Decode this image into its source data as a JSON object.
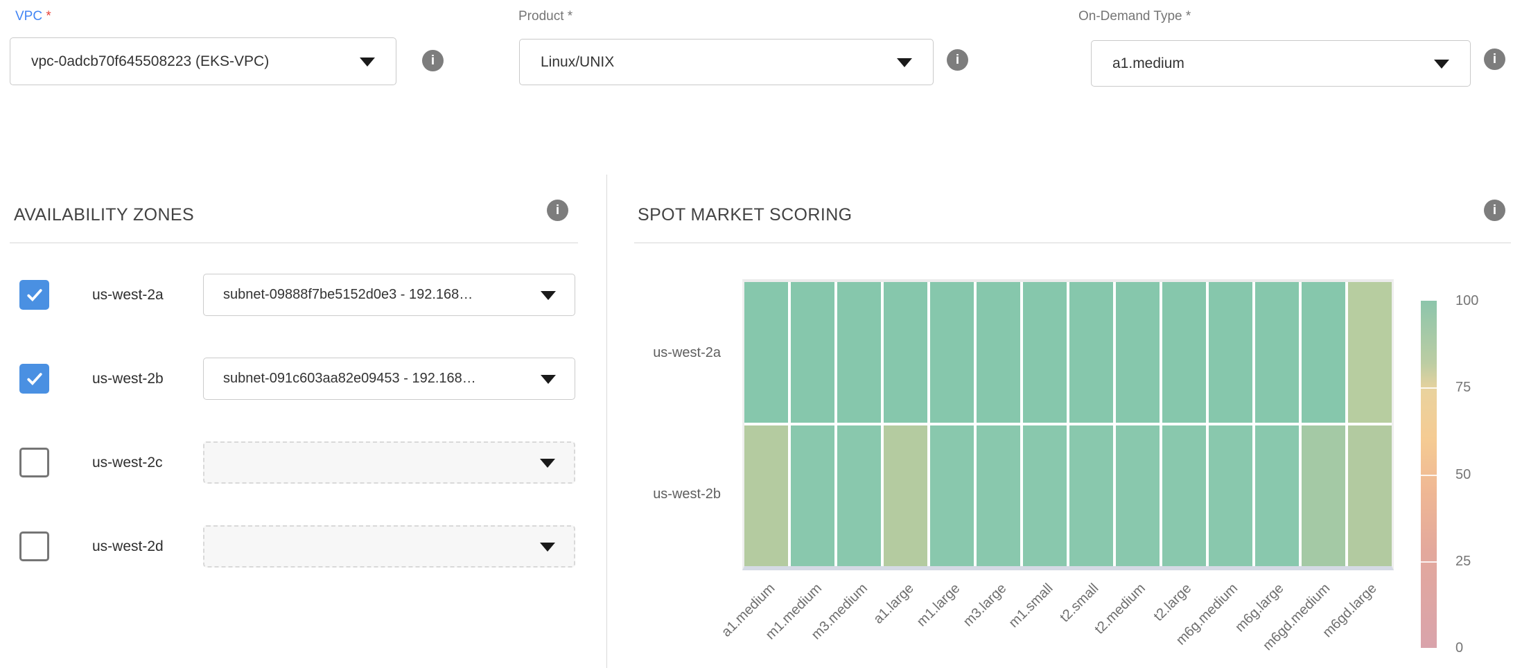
{
  "form": {
    "vpc": {
      "label": "VPC",
      "required": "*",
      "value": "vpc-0adcb70f645508223 (EKS-VPC)"
    },
    "product": {
      "label": "Product",
      "required": "*",
      "value": "Linux/UNIX"
    },
    "on_demand_type": {
      "label": "On-Demand Type",
      "required": "*",
      "value": "a1.medium"
    }
  },
  "availability_zones": {
    "title": "AVAILABILITY ZONES",
    "rows": [
      {
        "zone": "us-west-2a",
        "checked": true,
        "subnet": "subnet-09888f7be5152d0e3 - 192.168…"
      },
      {
        "zone": "us-west-2b",
        "checked": true,
        "subnet": "subnet-091c603aa82e09453 - 192.168…"
      },
      {
        "zone": "us-west-2c",
        "checked": false,
        "subnet": ""
      },
      {
        "zone": "us-west-2d",
        "checked": false,
        "subnet": ""
      }
    ]
  },
  "spot_market_scoring": {
    "title": "SPOT MARKET SCORING"
  },
  "chart_data": {
    "type": "heatmap",
    "title": "SPOT MARKET SCORING",
    "rows": [
      "us-west-2a",
      "us-west-2b"
    ],
    "columns": [
      "a1.medium",
      "m1.medium",
      "m3.medium",
      "a1.large",
      "m1.large",
      "m3.large",
      "m1.small",
      "t2.small",
      "t2.medium",
      "t2.large",
      "m6g.medium",
      "m6g.large",
      "m6gd.medium",
      "m6gd.large"
    ],
    "values": [
      [
        95,
        95,
        95,
        95,
        95,
        95,
        95,
        95,
        95,
        95,
        95,
        95,
        95,
        78
      ],
      [
        78,
        95,
        95,
        78,
        95,
        95,
        95,
        95,
        95,
        95,
        95,
        95,
        85,
        78
      ]
    ],
    "cell_colors": [
      [
        "#86c7ac",
        "#86c7ac",
        "#86c7ac",
        "#86c7ac",
        "#86c7ac",
        "#86c7ac",
        "#86c7ac",
        "#86c7ac",
        "#86c7ac",
        "#86c7ac",
        "#86c7ac",
        "#86c7ac",
        "#86c7ac",
        "#b7cda0"
      ],
      [
        "#b4cba0",
        "#89c8ad",
        "#89c8ad",
        "#b4cba0",
        "#89c8ad",
        "#89c8ad",
        "#89c8ad",
        "#89c8ad",
        "#89c8ad",
        "#89c8ad",
        "#89c8ad",
        "#89c8ad",
        "#a4c9a5",
        "#b2caa0"
      ]
    ],
    "value_range": [
      0,
      100
    ],
    "grid": false,
    "legend_position": "right",
    "colorbar": {
      "ticks": [
        "100",
        "75",
        "50",
        "25",
        "0"
      ],
      "stops": [
        {
          "color": "#8cc5ab",
          "pos": "0%"
        },
        {
          "color": "#bccda3",
          "pos": "18%"
        },
        {
          "color": "#ead29d",
          "pos": "26%"
        },
        {
          "color": "#f5cb93",
          "pos": "40%"
        },
        {
          "color": "#efb794",
          "pos": "55%"
        },
        {
          "color": "#e3a89c",
          "pos": "72%"
        },
        {
          "color": "#d9a3ab",
          "pos": "100%"
        }
      ]
    }
  },
  "icons": {
    "info_glyph": "i"
  }
}
